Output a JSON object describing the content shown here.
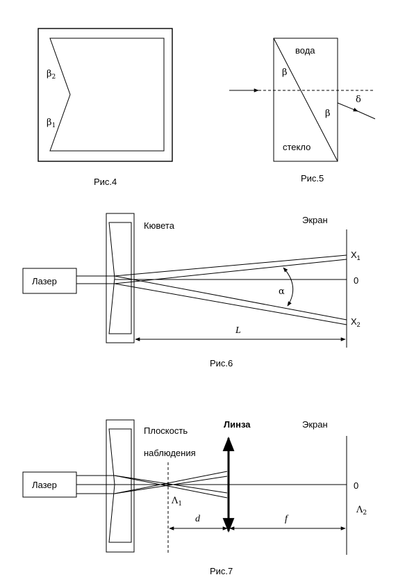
{
  "fig4": {
    "caption": "Рис.4",
    "beta2": "β",
    "beta2_sub": "2",
    "beta1": "β",
    "beta1_sub": "1"
  },
  "fig5": {
    "caption": "Рис.5",
    "water": "вода",
    "glass": "стекло",
    "beta_top": "β",
    "beta_bottom": "β",
    "delta": "δ"
  },
  "fig6": {
    "caption": "Рис.6",
    "cuvette": "Кювета",
    "screen": "Экран",
    "laser": "Лазер",
    "x1": "X",
    "x1_sub": "1",
    "zero": "0",
    "x2": "X",
    "x2_sub": "2",
    "alpha": "α",
    "distance": "L"
  },
  "fig7": {
    "caption": "Рис.7",
    "plane_line1": "Плоскость",
    "plane_line2": "наблюдения",
    "lens": "Линза",
    "screen": "Экран",
    "laser": "Лазер",
    "lambda1": "Λ",
    "lambda1_sub": "1",
    "zero": "0",
    "lambda2": "Λ",
    "lambda2_sub": "2",
    "d": "d",
    "f": "f"
  }
}
